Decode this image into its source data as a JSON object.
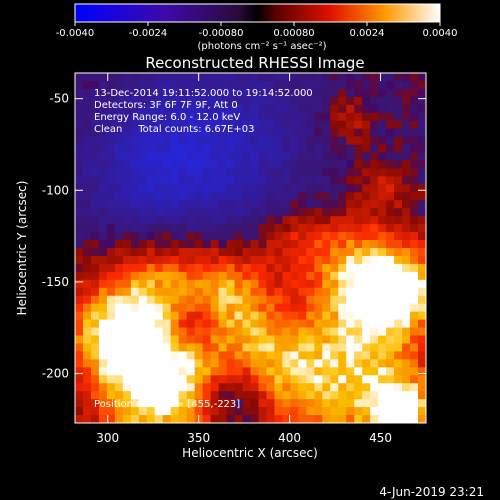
{
  "chart_data": {
    "type": "heatmap",
    "title": "Reconstructed RHESSI Image",
    "xlabel": "Heliocentric X (arcsec)",
    "ylabel": "Heliocentric Y (arcsec)",
    "xlim": [
      282,
      475
    ],
    "ylim": [
      -227,
      -36
    ],
    "x_ticks": [
      300,
      350,
      400,
      450
    ],
    "y_ticks": [
      -50,
      -100,
      -150,
      -200
    ],
    "colorbar": {
      "range": [
        -0.004,
        0.004
      ],
      "ticks": [
        "-0.0040",
        "-0.0024",
        "-0.00080",
        "0.00080",
        "0.0024",
        "0.0040"
      ],
      "units_label": "(photons cm⁻² s⁻¹ asec⁻²)"
    },
    "annotations": [
      "13-Dec-2014 19:11:52.000 to 19:14:52.000",
      "Detectors: 3F 6F 7F 9F, Att 0",
      "Energy Range: 6.0 - 12.0 keV",
      "Clean     Total counts: 6.67E+03"
    ],
    "peak_label": "Position of Peak = [455,-223]",
    "peak": [
      455,
      -223
    ],
    "colors": {
      "negative": "#0000ff",
      "zero": "#3a1a6a",
      "positive_mid": "#e02000",
      "positive_high": "#ffffff"
    }
  },
  "footer": {
    "timestamp": "4-Jun-2019 23:21"
  }
}
